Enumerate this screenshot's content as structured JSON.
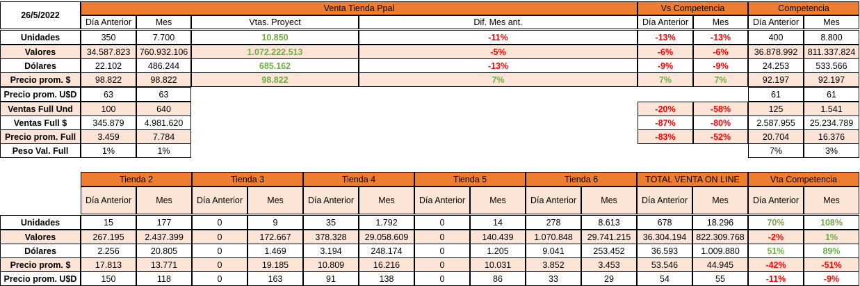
{
  "date": "26/5/2022",
  "top": {
    "groups": {
      "venta": "Venta Tienda Ppal",
      "vs": "Vs Competencia",
      "comp": "Competencia"
    },
    "subheaders": {
      "dia_anterior": "Día Anterior",
      "mes": "Mes",
      "vtas_proyect": "Vtas. Proyect",
      "dif_mes_ant": "Dif. Mes ant."
    },
    "rows": [
      {
        "label": "Unidades",
        "dia": "350",
        "mes": "7.700",
        "proy": "10.850",
        "dif": "-11%",
        "vs_dia": "-13%",
        "vs_mes": "-13%",
        "c_dia": "400",
        "c_mes": "8.800"
      },
      {
        "label": "Valores",
        "dia": "34.587.823",
        "mes": "760.932.106",
        "proy": "1.072.222.513",
        "dif": "-5%",
        "vs_dia": "-6%",
        "vs_mes": "-6%",
        "c_dia": "36.878.992",
        "c_mes": "811.337.824"
      },
      {
        "label": "Dólares",
        "dia": "22.102",
        "mes": "486.244",
        "proy": "685.162",
        "dif": "-13%",
        "vs_dia": "-9%",
        "vs_mes": "-9%",
        "c_dia": "24.253",
        "c_mes": "533.566"
      },
      {
        "label": "Precio prom. $",
        "dia": "98.822",
        "mes": "98.822",
        "proy": "98.822",
        "dif": "7%",
        "vs_dia": "7%",
        "vs_mes": "7%",
        "c_dia": "92.197",
        "c_mes": "92.197"
      },
      {
        "label": "Precio prom. U$D",
        "dia": "63",
        "mes": "63",
        "c_dia": "61",
        "c_mes": "61"
      },
      {
        "label": "Ventas Full Und",
        "dia": "100",
        "mes": "640",
        "vs_dia": "-20%",
        "vs_mes": "-58%",
        "c_dia": "125",
        "c_mes": "1.541"
      },
      {
        "label": "Ventas Full $",
        "dia": "345.879",
        "mes": "4.981.620",
        "vs_dia": "-87%",
        "vs_mes": "-80%",
        "c_dia": "2.587.955",
        "c_mes": "25.234.789"
      },
      {
        "label": "Precio prom. Full",
        "dia": "3.459",
        "mes": "7.784",
        "vs_dia": "-83%",
        "vs_mes": "-52%",
        "c_dia": "20.704",
        "c_mes": "16.376"
      },
      {
        "label": "Peso Val. Full",
        "dia": "1%",
        "mes": "1%",
        "c_dia": "7%",
        "c_mes": "3%"
      }
    ]
  },
  "bottom": {
    "groups": [
      "Tienda 2",
      "Tienda 3",
      "Tienda 4",
      "Tienda 5",
      "Tienda 6",
      "TOTAL VENTA ON LINE",
      "Vta Competencia"
    ],
    "subheaders": [
      "Día Anterior",
      "Mes"
    ],
    "rows": [
      {
        "label": "Unidades",
        "vals": [
          "15",
          "177",
          "0",
          "9",
          "35",
          "1.792",
          "0",
          "14",
          "278",
          "8.613",
          "678",
          "18.296",
          "70%",
          "108%"
        ]
      },
      {
        "label": "Valores",
        "vals": [
          "267.195",
          "2.437.399",
          "0",
          "172.667",
          "378.328",
          "29.058.609",
          "0",
          "140.439",
          "1.070.848",
          "29.741.215",
          "36.304.194",
          "822.309.768",
          "-2%",
          "1%"
        ]
      },
      {
        "label": "Dólares",
        "vals": [
          "2.256",
          "20.805",
          "0",
          "1.469",
          "3.194",
          "248.174",
          "0",
          "1.205",
          "9.041",
          "253.452",
          "36.593",
          "1.009.880",
          "51%",
          "89%"
        ]
      },
      {
        "label": "Precio prom. $",
        "vals": [
          "17.813",
          "13.771",
          "0",
          "19.185",
          "10.809",
          "16.216",
          "0",
          "10.031",
          "3.852",
          "3.453",
          "53.546",
          "44.945",
          "-42%",
          "-51%"
        ]
      },
      {
        "label": "Precio prom. U$D",
        "vals": [
          "150",
          "118",
          "0",
          "163",
          "91",
          "138",
          "0",
          "86",
          "33",
          "29",
          "54",
          "55",
          "-11%",
          "-9%"
        ]
      }
    ]
  },
  "colors": {
    "header": "#ED7D31",
    "subheader": "#FCE4D6",
    "negative": "#FF0000",
    "positive": "#70AD47"
  }
}
